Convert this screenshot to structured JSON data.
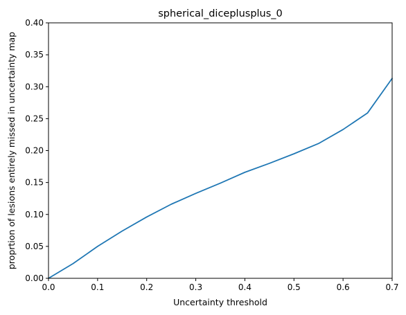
{
  "chart_data": {
    "type": "line",
    "title": "spherical_diceplusplus_0",
    "xlabel": "Uncertainty threshold",
    "ylabel": "proprtion of lesions entirely missed in uncertainty map",
    "xlim": [
      0.0,
      0.7
    ],
    "ylim": [
      0.0,
      0.4
    ],
    "xticks": [
      "0.0",
      "0.1",
      "0.2",
      "0.3",
      "0.4",
      "0.5",
      "0.6",
      "0.7"
    ],
    "yticks": [
      "0.00",
      "0.05",
      "0.10",
      "0.15",
      "0.20",
      "0.25",
      "0.30",
      "0.35",
      "0.40"
    ],
    "grid": false,
    "series": [
      {
        "color": "#1f77b4",
        "x": [
          0.0,
          0.05,
          0.1,
          0.15,
          0.2,
          0.25,
          0.3,
          0.35,
          0.4,
          0.45,
          0.5,
          0.55,
          0.6,
          0.65,
          0.7
        ],
        "y": [
          0.0,
          0.023,
          0.05,
          0.074,
          0.096,
          0.116,
          0.133,
          0.149,
          0.166,
          0.18,
          0.195,
          0.211,
          0.233,
          0.259,
          0.313
        ]
      }
    ]
  }
}
